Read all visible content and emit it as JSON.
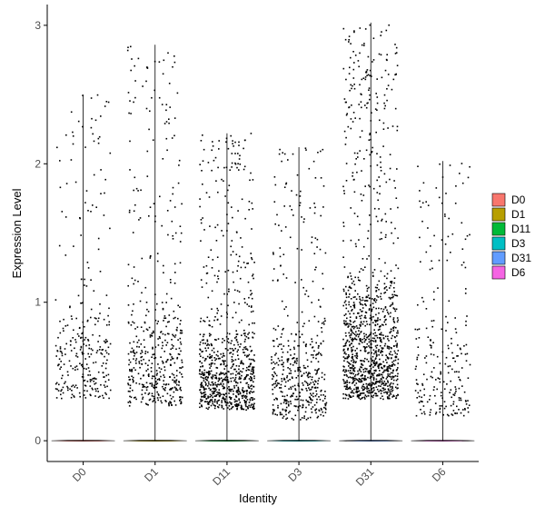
{
  "chart_data": {
    "type": "scatter",
    "subtype": "violin-jitter",
    "title": "",
    "xlabel": "Identity",
    "ylabel": "Expression Level",
    "categories": [
      "D0",
      "D1",
      "D11",
      "D3",
      "D31",
      "D6"
    ],
    "y_ticks": [
      "0",
      "1",
      "2",
      "3"
    ],
    "ylim": [
      -0.15,
      3.15
    ],
    "grid": false,
    "legend": {
      "position": "right",
      "entries": [
        {
          "label": "D0",
          "color": "#F8766D"
        },
        {
          "label": "D1",
          "color": "#B79F00"
        },
        {
          "label": "D11",
          "color": "#00BA38"
        },
        {
          "label": "D3",
          "color": "#00BFC4"
        },
        {
          "label": "D31",
          "color": "#619CFF"
        },
        {
          "label": "D6",
          "color": "#F564E3"
        }
      ]
    },
    "violins": [
      {
        "group": "D0",
        "max": 2.5,
        "color": "#F8766D"
      },
      {
        "group": "D1",
        "max": 2.86,
        "color": "#B79F00"
      },
      {
        "group": "D11",
        "max": 2.22,
        "color": "#00BA38"
      },
      {
        "group": "D3",
        "max": 2.12,
        "color": "#00BFC4"
      },
      {
        "group": "D31",
        "max": 3.02,
        "color": "#619CFF"
      },
      {
        "group": "D6",
        "max": 2.02,
        "color": "#F564E3"
      }
    ],
    "point_summary": [
      {
        "group": "D0",
        "nonzero_points": 300,
        "dense_low": 0.3,
        "dense_high": 1.0,
        "median_nonzero": 0.75
      },
      {
        "group": "D1",
        "nonzero_points": 480,
        "dense_low": 0.25,
        "dense_high": 1.0,
        "median_nonzero": 0.7
      },
      {
        "group": "D11",
        "nonzero_points": 820,
        "dense_low": 0.22,
        "dense_high": 0.8,
        "median_nonzero": 0.42
      },
      {
        "group": "D3",
        "nonzero_points": 470,
        "dense_low": 0.15,
        "dense_high": 0.9,
        "median_nonzero": 0.45
      },
      {
        "group": "D31",
        "nonzero_points": 1180,
        "dense_low": 0.3,
        "dense_high": 1.2,
        "median_nonzero": 0.72
      },
      {
        "group": "D6",
        "nonzero_points": 240,
        "dense_low": 0.18,
        "dense_high": 0.95,
        "median_nonzero": 0.6
      }
    ],
    "point_color": "#000000"
  }
}
